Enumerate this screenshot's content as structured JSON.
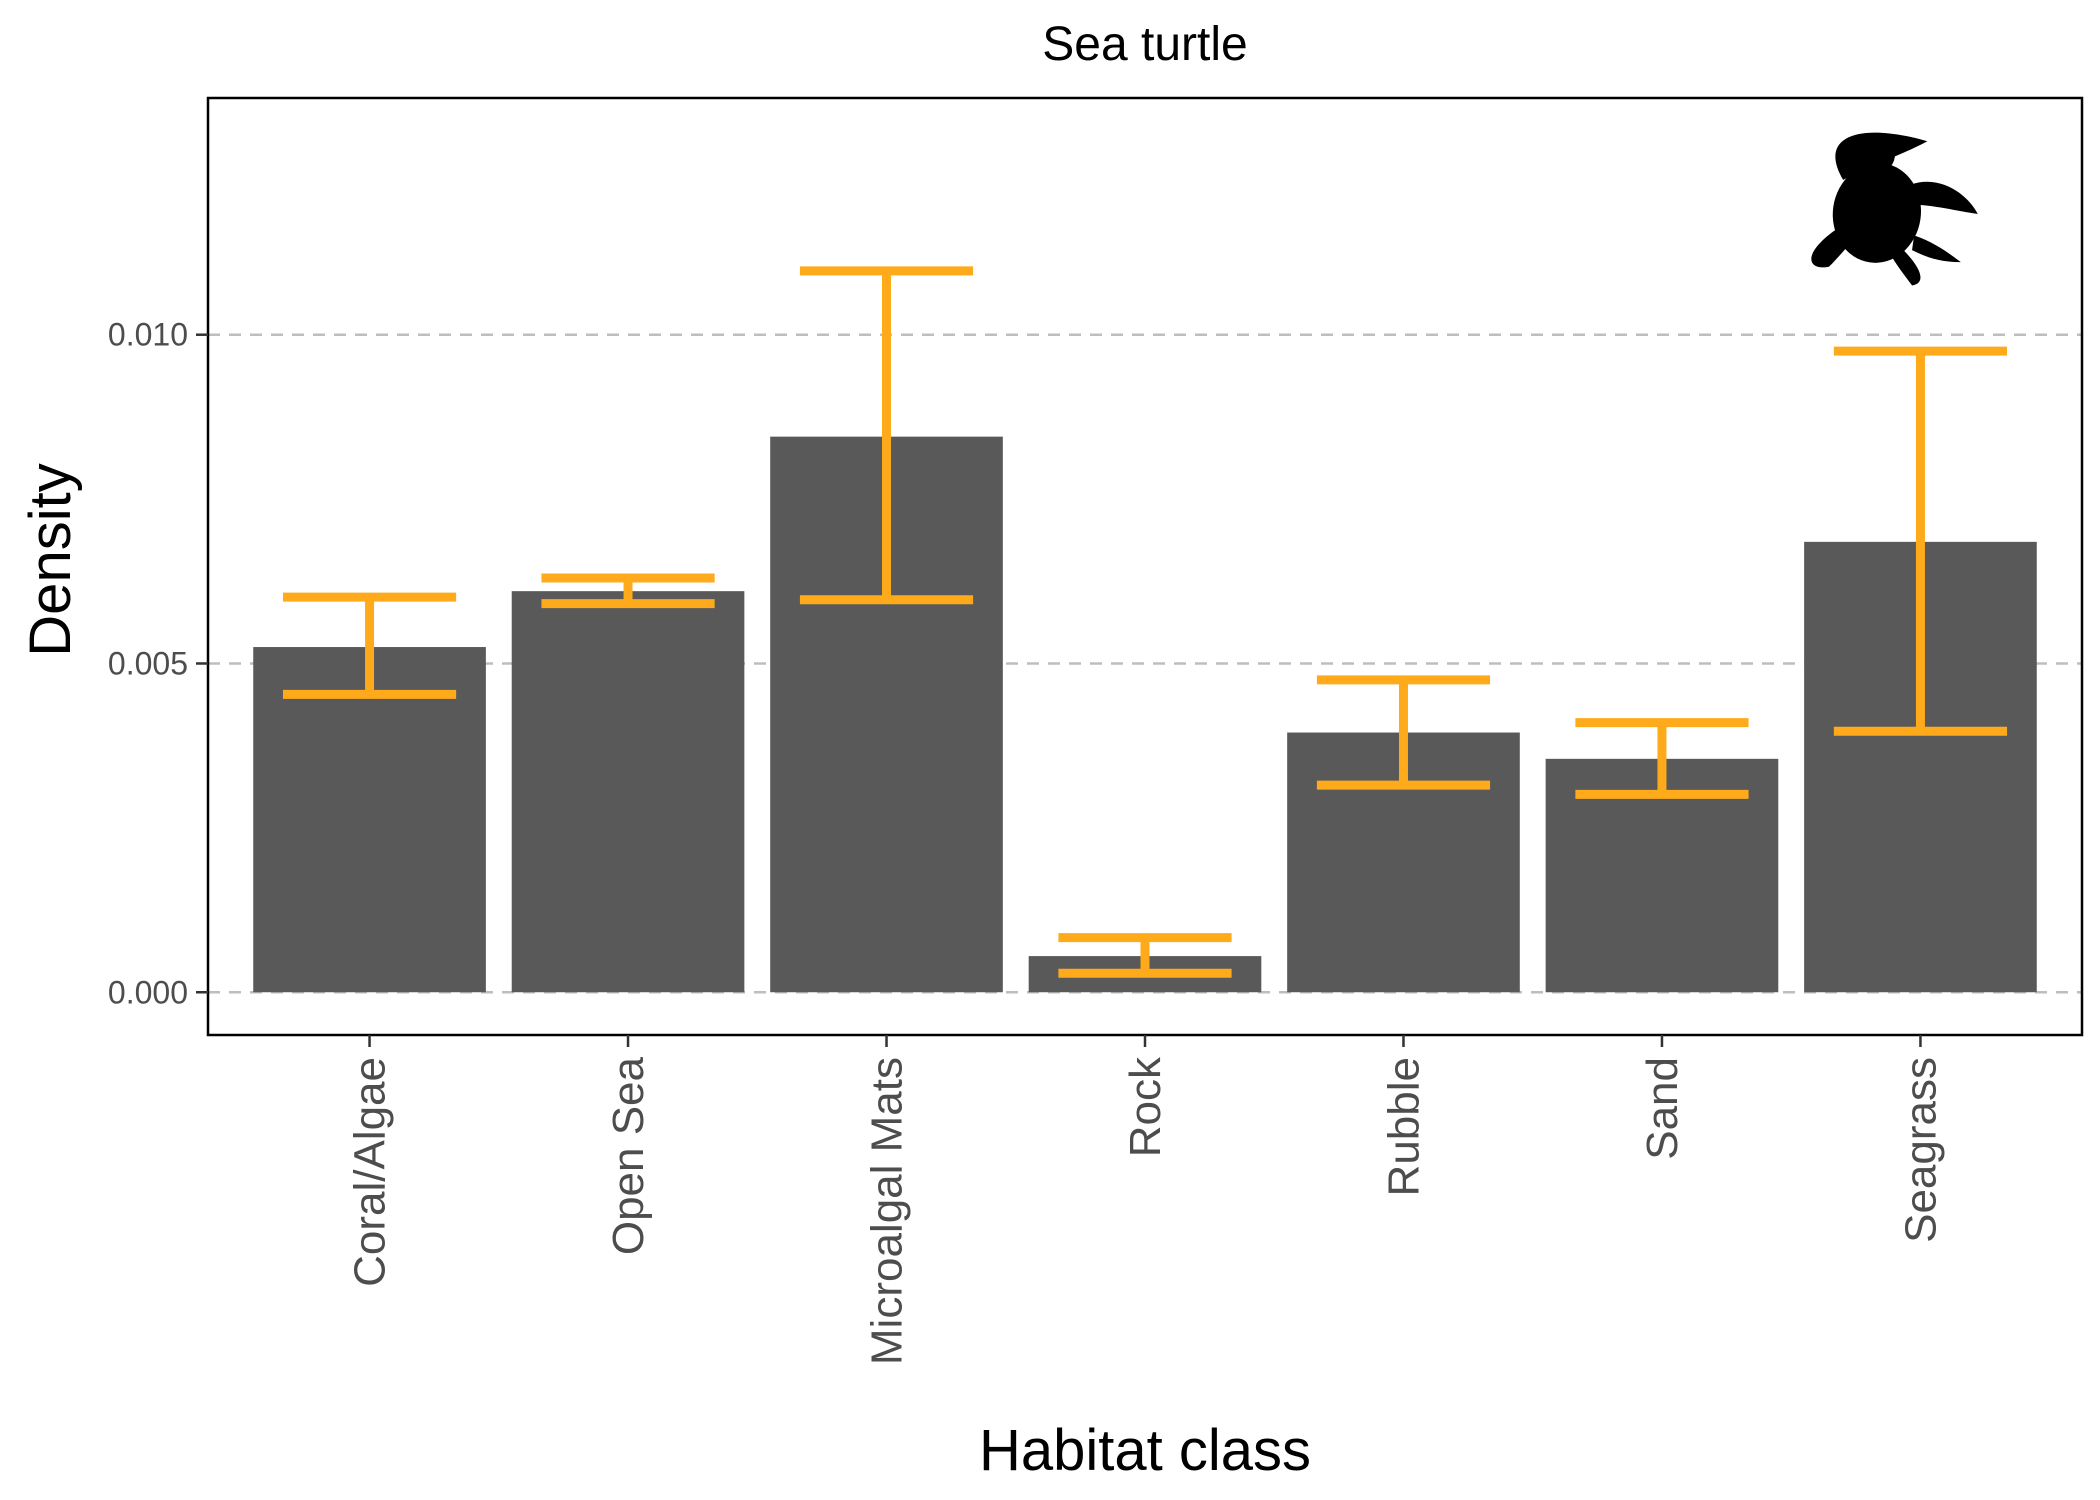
{
  "chart_data": {
    "type": "bar",
    "title": "Sea turtle",
    "xlabel": "Habitat class",
    "ylabel": "Density",
    "categories": [
      "Coral/Algae",
      "Open Sea",
      "Microalgal Mats",
      "Rock",
      "Rubble",
      "Sand",
      "Seagrass"
    ],
    "values": [
      0.00525,
      0.0061,
      0.00845,
      0.00055,
      0.00395,
      0.00355,
      0.00685
    ],
    "error_low": [
      0.00453,
      0.00591,
      0.00597,
      0.00029,
      0.00315,
      0.00301,
      0.00397
    ],
    "error_high": [
      0.00601,
      0.0063,
      0.01097,
      0.00083,
      0.00475,
      0.0041,
      0.00975
    ],
    "yticks": [
      0.0,
      0.005,
      0.01
    ],
    "ytick_labels": [
      "0.000",
      "0.005",
      "0.010"
    ],
    "ylim": [
      -0.00065,
      0.0136
    ],
    "grid": "horizontal dashed",
    "legend": "none",
    "bar_color": "#595959",
    "error_color": "#FFAA1A",
    "grid_color": "#BEBEBE",
    "annotation_icon": "sea-turtle-silhouette-icon"
  }
}
